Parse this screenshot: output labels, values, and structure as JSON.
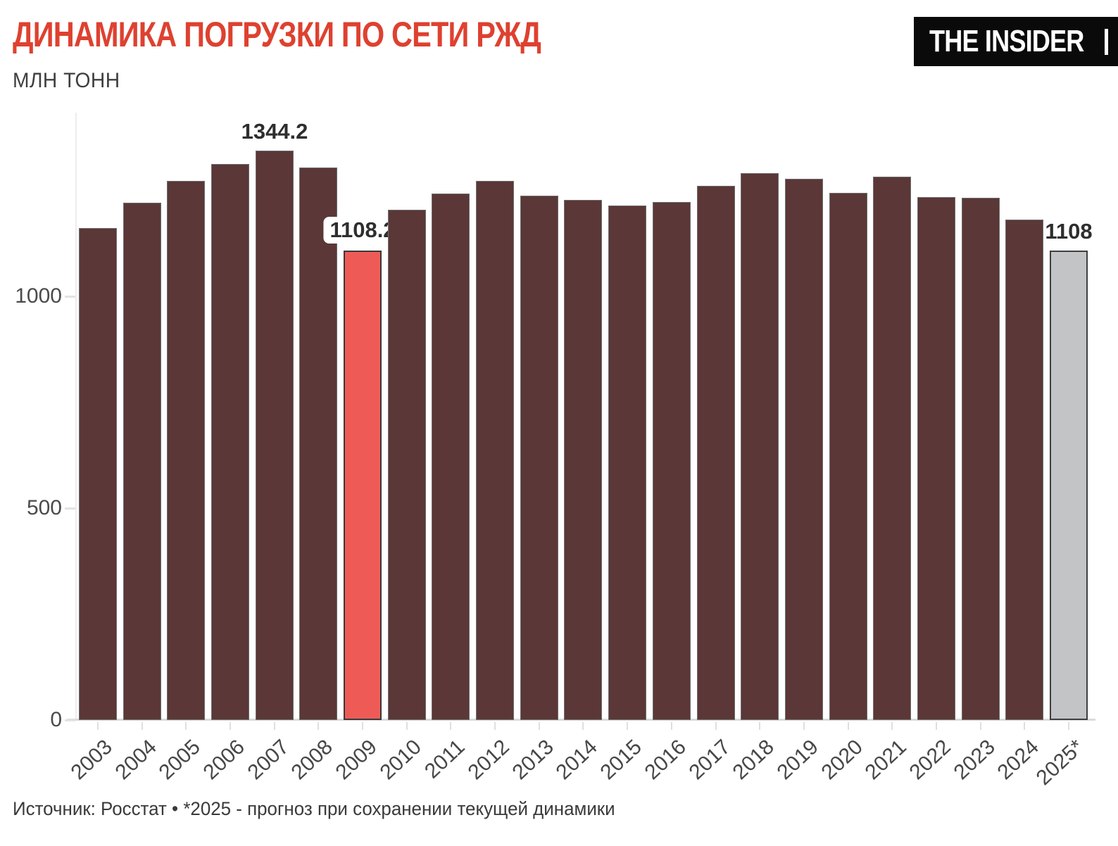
{
  "header": {
    "title": "ДИНАМИКА ПОГРУЗКИ ПО СЕТИ РЖД",
    "subtitle": "МЛН ТОНН",
    "logo_text": "THE INSIDER"
  },
  "footer": {
    "source_note": "Источник: Росстат • *2025 - прогноз при сохранении текущей динамики"
  },
  "colors": {
    "title": "#de4130",
    "bar_fill": "#5b3737",
    "bar_stroke": "#6f6f6f",
    "highlight_fill": "#ee5b57",
    "highlight_stroke": "#3a3a3a",
    "forecast_fill": "#c2c4c6",
    "forecast_stroke": "#3f3f3f"
  },
  "chart_data": {
    "type": "bar",
    "title": "ДИНАМИКА ПОГРУЗКИ ПО СЕТИ РЖД",
    "ylabel": "МЛН ТОНН",
    "ylim": [
      0,
      1400
    ],
    "yticks": [
      0,
      500,
      1000
    ],
    "grid": false,
    "legend": "none",
    "categories": [
      "2003",
      "2004",
      "2005",
      "2006",
      "2007",
      "2008",
      "2009",
      "2010",
      "2011",
      "2012",
      "2013",
      "2014",
      "2015",
      "2016",
      "2017",
      "2018",
      "2019",
      "2020",
      "2021",
      "2022",
      "2023",
      "2024",
      "2025*"
    ],
    "values": [
      1161,
      1221,
      1273,
      1312,
      1344.2,
      1304,
      1108.2,
      1205,
      1242,
      1272,
      1237,
      1227,
      1215,
      1222,
      1261,
      1290,
      1278,
      1244,
      1283,
      1234,
      1232,
      1181,
      1108
    ],
    "highlight_category": "2009",
    "forecast_category": "2025*",
    "annotations": [
      {
        "category": "2007",
        "text": "1344.2",
        "pill": false
      },
      {
        "category": "2009",
        "text": "1108.2",
        "pill": true
      },
      {
        "category": "2025*",
        "text": "1108",
        "pill": false
      }
    ]
  }
}
